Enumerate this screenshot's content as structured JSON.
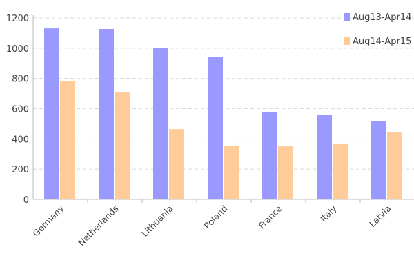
{
  "chart_data": {
    "type": "bar",
    "categories": [
      "Germany",
      "Netherlands",
      "Lithuania",
      "Poland",
      "France",
      "Italy",
      "Latvia"
    ],
    "series": [
      {
        "name": "Aug13-Apr14",
        "color": "#9999ff",
        "values": [
          1131,
          1127,
          999,
          944,
          579,
          561,
          516
        ]
      },
      {
        "name": "Aug14-Apr15",
        "color": "#ffcc99",
        "values": [
          785,
          707,
          465,
          356,
          351,
          365,
          443
        ]
      }
    ],
    "yticks": [
      0,
      200,
      400,
      600,
      800,
      1000,
      1200
    ],
    "ylim": [
      0,
      1200
    ],
    "grid": true,
    "legend": "top-right",
    "title": "",
    "xlabel": "",
    "ylabel": ""
  }
}
